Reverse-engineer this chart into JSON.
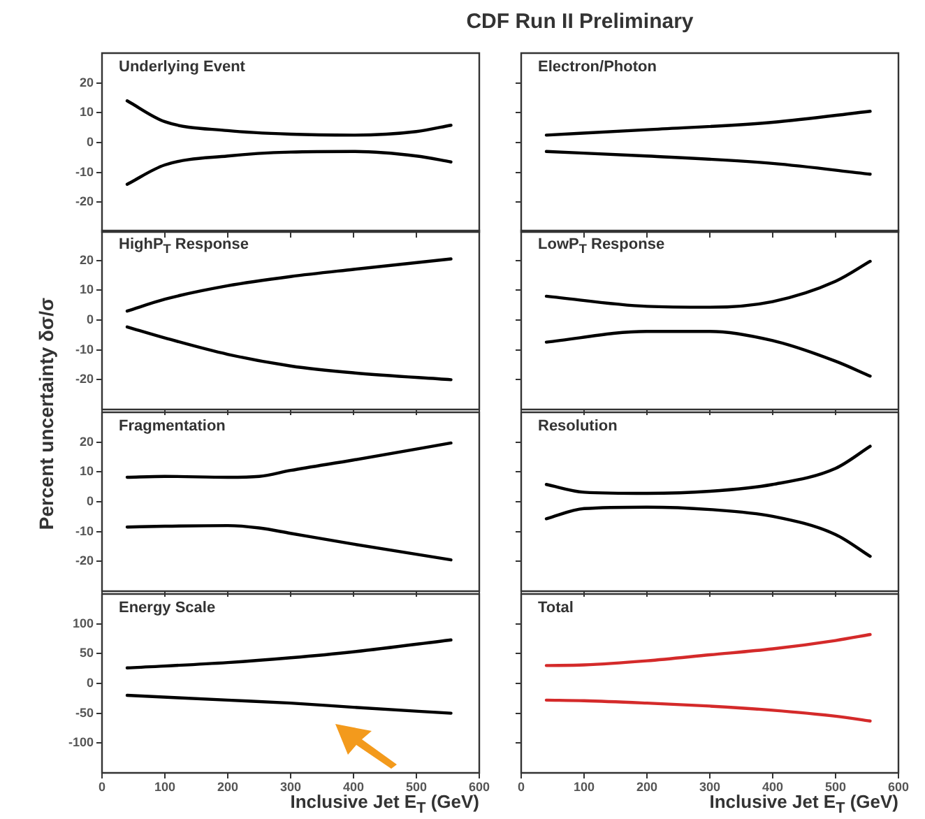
{
  "chart_data": [
    {
      "type": "line",
      "title": "Underlying Event",
      "annotations": [
        "CDF Run II Preliminary"
      ],
      "xlim": [
        0,
        600
      ],
      "xticks": [
        0,
        100,
        200,
        300,
        400,
        500,
        600
      ],
      "ylim": [
        -30,
        30
      ],
      "yticks": [
        -20,
        -10,
        0,
        10,
        20
      ],
      "tick_labels": "y",
      "x": [
        40,
        100,
        200,
        300,
        400,
        500,
        555
      ],
      "series": [
        {
          "color": "#000000",
          "values": [
            14,
            7,
            4,
            2.8,
            2.5,
            3.7,
            5.8
          ]
        },
        {
          "color": "#000000",
          "values": [
            -14,
            -7.5,
            -4.5,
            -3.2,
            -3,
            -4.5,
            -6.5
          ]
        }
      ]
    },
    {
      "type": "line",
      "title": "Electron/Photon",
      "xlim": [
        0,
        600
      ],
      "xticks": [
        0,
        100,
        200,
        300,
        400,
        500,
        600
      ],
      "ylim": [
        -30,
        30
      ],
      "yticks": [
        -20,
        -10,
        0,
        10,
        20
      ],
      "tick_labels": false,
      "x": [
        40,
        200,
        400,
        555
      ],
      "series": [
        {
          "color": "#000000",
          "values": [
            2.5,
            4.3,
            6.8,
            10.5
          ]
        },
        {
          "color": "#000000",
          "values": [
            -3,
            -4.5,
            -7,
            -10.6
          ]
        }
      ]
    },
    {
      "type": "line",
      "title": "HighP$_{T}$ Response",
      "xlim": [
        0,
        600
      ],
      "xticks": [
        0,
        100,
        200,
        300,
        400,
        500,
        600
      ],
      "ylim": [
        -30,
        30
      ],
      "yticks": [
        -20,
        -10,
        0,
        10,
        20
      ],
      "tick_labels": "y",
      "x": [
        40,
        100,
        200,
        300,
        400,
        555
      ],
      "series": [
        {
          "color": "#000000",
          "values": [
            3,
            7,
            11.5,
            14.6,
            17,
            20.5
          ]
        },
        {
          "color": "#000000",
          "values": [
            -2.3,
            -6,
            -11.5,
            -15.4,
            -17.7,
            -20
          ]
        }
      ]
    },
    {
      "type": "line",
      "title": "LowP$_{T}$ Response",
      "xlim": [
        0,
        600
      ],
      "xticks": [
        0,
        100,
        200,
        300,
        400,
        500,
        600
      ],
      "ylim": [
        -30,
        30
      ],
      "yticks": [
        -20,
        -10,
        0,
        10,
        20
      ],
      "tick_labels": false,
      "x": [
        40,
        200,
        300,
        400,
        500,
        555
      ],
      "series": [
        {
          "color": "#000000",
          "values": [
            8,
            4.6,
            4.3,
            6.2,
            13,
            19.7
          ]
        },
        {
          "color": "#000000",
          "values": [
            -7.4,
            -3.8,
            -3.8,
            -6.9,
            -13.8,
            -18.8
          ]
        }
      ]
    },
    {
      "type": "line",
      "title": "Fragmentation",
      "ylabel": "Percent uncertainty δσ/σ",
      "xlim": [
        0,
        600
      ],
      "xticks": [
        0,
        100,
        200,
        300,
        400,
        500,
        600
      ],
      "ylim": [
        -30,
        30
      ],
      "yticks": [
        -20,
        -10,
        0,
        10,
        20
      ],
      "tick_labels": "y",
      "x": [
        40,
        100,
        200,
        250,
        300,
        400,
        555
      ],
      "series": [
        {
          "color": "#000000",
          "values": [
            8.2,
            8.5,
            8.2,
            8.5,
            10.5,
            14,
            19.7
          ]
        },
        {
          "color": "#000000",
          "values": [
            -8.5,
            -8.2,
            -8,
            -8.8,
            -10.6,
            -14.2,
            -19.5
          ]
        }
      ]
    },
    {
      "type": "line",
      "title": "Resolution",
      "xlim": [
        0,
        600
      ],
      "xticks": [
        0,
        100,
        200,
        300,
        400,
        500,
        600
      ],
      "ylim": [
        -30,
        30
      ],
      "yticks": [
        -20,
        -10,
        0,
        10,
        20
      ],
      "tick_labels": false,
      "x": [
        40,
        100,
        200,
        300,
        400,
        500,
        555
      ],
      "series": [
        {
          "color": "#000000",
          "values": [
            5.8,
            3.2,
            2.8,
            3.5,
            5.8,
            11.2,
            18.6
          ]
        },
        {
          "color": "#000000",
          "values": [
            -5.7,
            -2.3,
            -1.8,
            -2.6,
            -4.9,
            -11,
            -18.3
          ]
        }
      ]
    },
    {
      "type": "line",
      "title": "Energy Scale",
      "xlabel": "Inclusive Jet E$_{T}$ (GeV)",
      "xlim": [
        0,
        600
      ],
      "xticks": [
        0,
        100,
        200,
        300,
        400,
        500,
        600
      ],
      "ylim": [
        -150,
        150
      ],
      "yticks": [
        -100,
        -50,
        0,
        50,
        100
      ],
      "x": [
        40,
        200,
        300,
        400,
        555
      ],
      "series": [
        {
          "color": "#000000",
          "values": [
            26,
            35,
            43,
            53,
            73
          ]
        },
        {
          "color": "#000000",
          "values": [
            -20,
            -28,
            -33,
            -40,
            -50
          ]
        }
      ]
    },
    {
      "type": "line",
      "title": "Total",
      "xlabel": "Inclusive Jet E$_{T}$ (GeV)",
      "xlim": [
        0,
        600
      ],
      "xticks": [
        0,
        100,
        200,
        300,
        400,
        500,
        600
      ],
      "ylim": [
        -150,
        150
      ],
      "yticks": [
        -100,
        -50,
        0,
        50,
        100
      ],
      "tick_labels": "x",
      "x": [
        40,
        100,
        200,
        300,
        400,
        500,
        555
      ],
      "series": [
        {
          "color": "#d42a2a",
          "values": [
            30,
            31,
            38,
            48,
            58,
            72,
            82
          ]
        },
        {
          "color": "#d42a2a",
          "values": [
            -28,
            -29,
            -33,
            -38,
            -45,
            -55,
            -63
          ]
        }
      ]
    }
  ]
}
